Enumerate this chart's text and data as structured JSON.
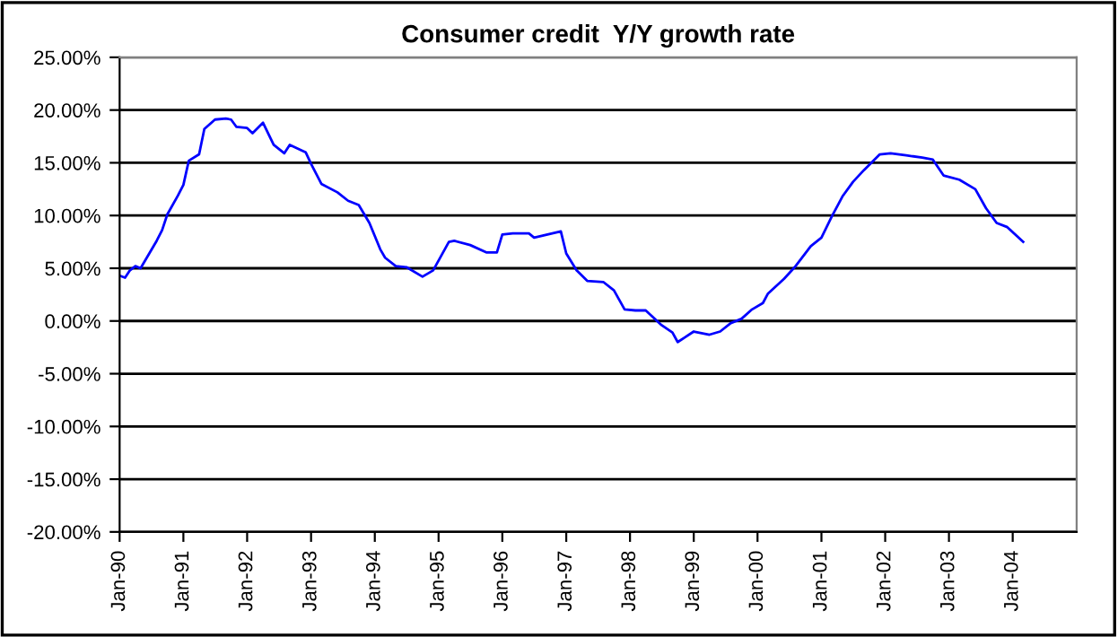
{
  "chart_data": {
    "type": "line",
    "title": "Consumer credit  Y/Y growth rate",
    "x": [
      "1990-01",
      "1990-02",
      "1990-03",
      "1990-04",
      "1990-05",
      "1990-08",
      "1990-09",
      "1990-10",
      "1990-12",
      "1991-01",
      "1991-02",
      "1991-04",
      "1991-05",
      "1991-07",
      "1991-09",
      "1991-10",
      "1991-11",
      "1992-01",
      "1992-02",
      "1992-04",
      "1992-06",
      "1992-08",
      "1992-09",
      "1992-12",
      "1993-01",
      "1993-03",
      "1993-06",
      "1993-08",
      "1993-10",
      "1993-12",
      "1994-02",
      "1994-03",
      "1994-05",
      "1994-07",
      "1994-10",
      "1994-12",
      "1995-03",
      "1995-04",
      "1995-07",
      "1995-10",
      "1995-12",
      "1996-01",
      "1996-03",
      "1996-06",
      "1996-07",
      "1996-12",
      "1997-01",
      "1997-03",
      "1997-05",
      "1997-08",
      "1997-10",
      "1997-12",
      "1998-02",
      "1998-04",
      "1998-07",
      "1998-09",
      "1998-10",
      "1999-01",
      "1999-04",
      "1999-06",
      "1999-08",
      "1999-10",
      "1999-12",
      "2000-02",
      "2000-03",
      "2000-06",
      "2000-08",
      "2000-11",
      "2001-01",
      "2001-03",
      "2001-05",
      "2001-07",
      "2001-09",
      "2001-12",
      "2002-02",
      "2002-05",
      "2002-08",
      "2002-10",
      "2002-12",
      "2003-03",
      "2003-06",
      "2003-08",
      "2003-10",
      "2003-12",
      "2004-03"
    ],
    "series": [
      {
        "color": "#0000ff",
        "values": [
          4.3,
          4.1,
          4.8,
          5.2,
          5.0,
          7.6,
          8.6,
          10.1,
          11.9,
          12.9,
          15.2,
          15.8,
          18.2,
          19.1,
          19.2,
          19.1,
          18.4,
          18.3,
          17.8,
          18.8,
          16.7,
          15.9,
          16.7,
          16.0,
          14.9,
          13.0,
          12.2,
          11.4,
          11.0,
          9.3,
          6.8,
          6.0,
          5.2,
          5.1,
          4.2,
          4.8,
          7.5,
          7.6,
          7.2,
          6.5,
          6.5,
          8.2,
          8.3,
          8.3,
          7.9,
          8.5,
          6.4,
          4.8,
          3.8,
          3.7,
          2.9,
          1.1,
          1.0,
          1.0,
          -0.4,
          -1.1,
          -2.0,
          -1.0,
          -1.3,
          -1.0,
          -0.2,
          0.2,
          1.1,
          1.7,
          2.6,
          4.0,
          5.1,
          7.1,
          7.9,
          9.9,
          11.8,
          13.2,
          14.3,
          15.8,
          15.9,
          15.7,
          15.5,
          15.3,
          13.8,
          13.4,
          12.5,
          10.7,
          9.3,
          8.9,
          7.5
        ]
      }
    ],
    "xlim": [
      "1990-01",
      "2005-01"
    ],
    "xticks": [
      {
        "value": "1990-01",
        "label": "Jan-90"
      },
      {
        "value": "1991-01",
        "label": "Jan-91"
      },
      {
        "value": "1992-01",
        "label": "Jan-92"
      },
      {
        "value": "1993-01",
        "label": "Jan-93"
      },
      {
        "value": "1994-01",
        "label": "Jan-94"
      },
      {
        "value": "1995-01",
        "label": "Jan-95"
      },
      {
        "value": "1996-01",
        "label": "Jan-96"
      },
      {
        "value": "1997-01",
        "label": "Jan-97"
      },
      {
        "value": "1998-01",
        "label": "Jan-98"
      },
      {
        "value": "1999-01",
        "label": "Jan-99"
      },
      {
        "value": "2000-01",
        "label": "Jan-00"
      },
      {
        "value": "2001-01",
        "label": "Jan-01"
      },
      {
        "value": "2002-01",
        "label": "Jan-02"
      },
      {
        "value": "2003-01",
        "label": "Jan-03"
      },
      {
        "value": "2004-01",
        "label": "Jan-04"
      }
    ],
    "ylim": [
      -20,
      25
    ],
    "yticks": [
      {
        "value": -20,
        "label": "-20.00%"
      },
      {
        "value": -15,
        "label": "-15.00%"
      },
      {
        "value": -10,
        "label": "-10.00%"
      },
      {
        "value": -5,
        "label": "-5.00%"
      },
      {
        "value": 0,
        "label": "0.00%"
      },
      {
        "value": 5,
        "label": "5.00%"
      },
      {
        "value": 10,
        "label": "10.00%"
      },
      {
        "value": 15,
        "label": "15.00%"
      },
      {
        "value": 20,
        "label": "20.00%"
      },
      {
        "value": 25,
        "label": "25.00%"
      }
    ],
    "grid": "y",
    "marker": "none",
    "line_style": "solid"
  }
}
